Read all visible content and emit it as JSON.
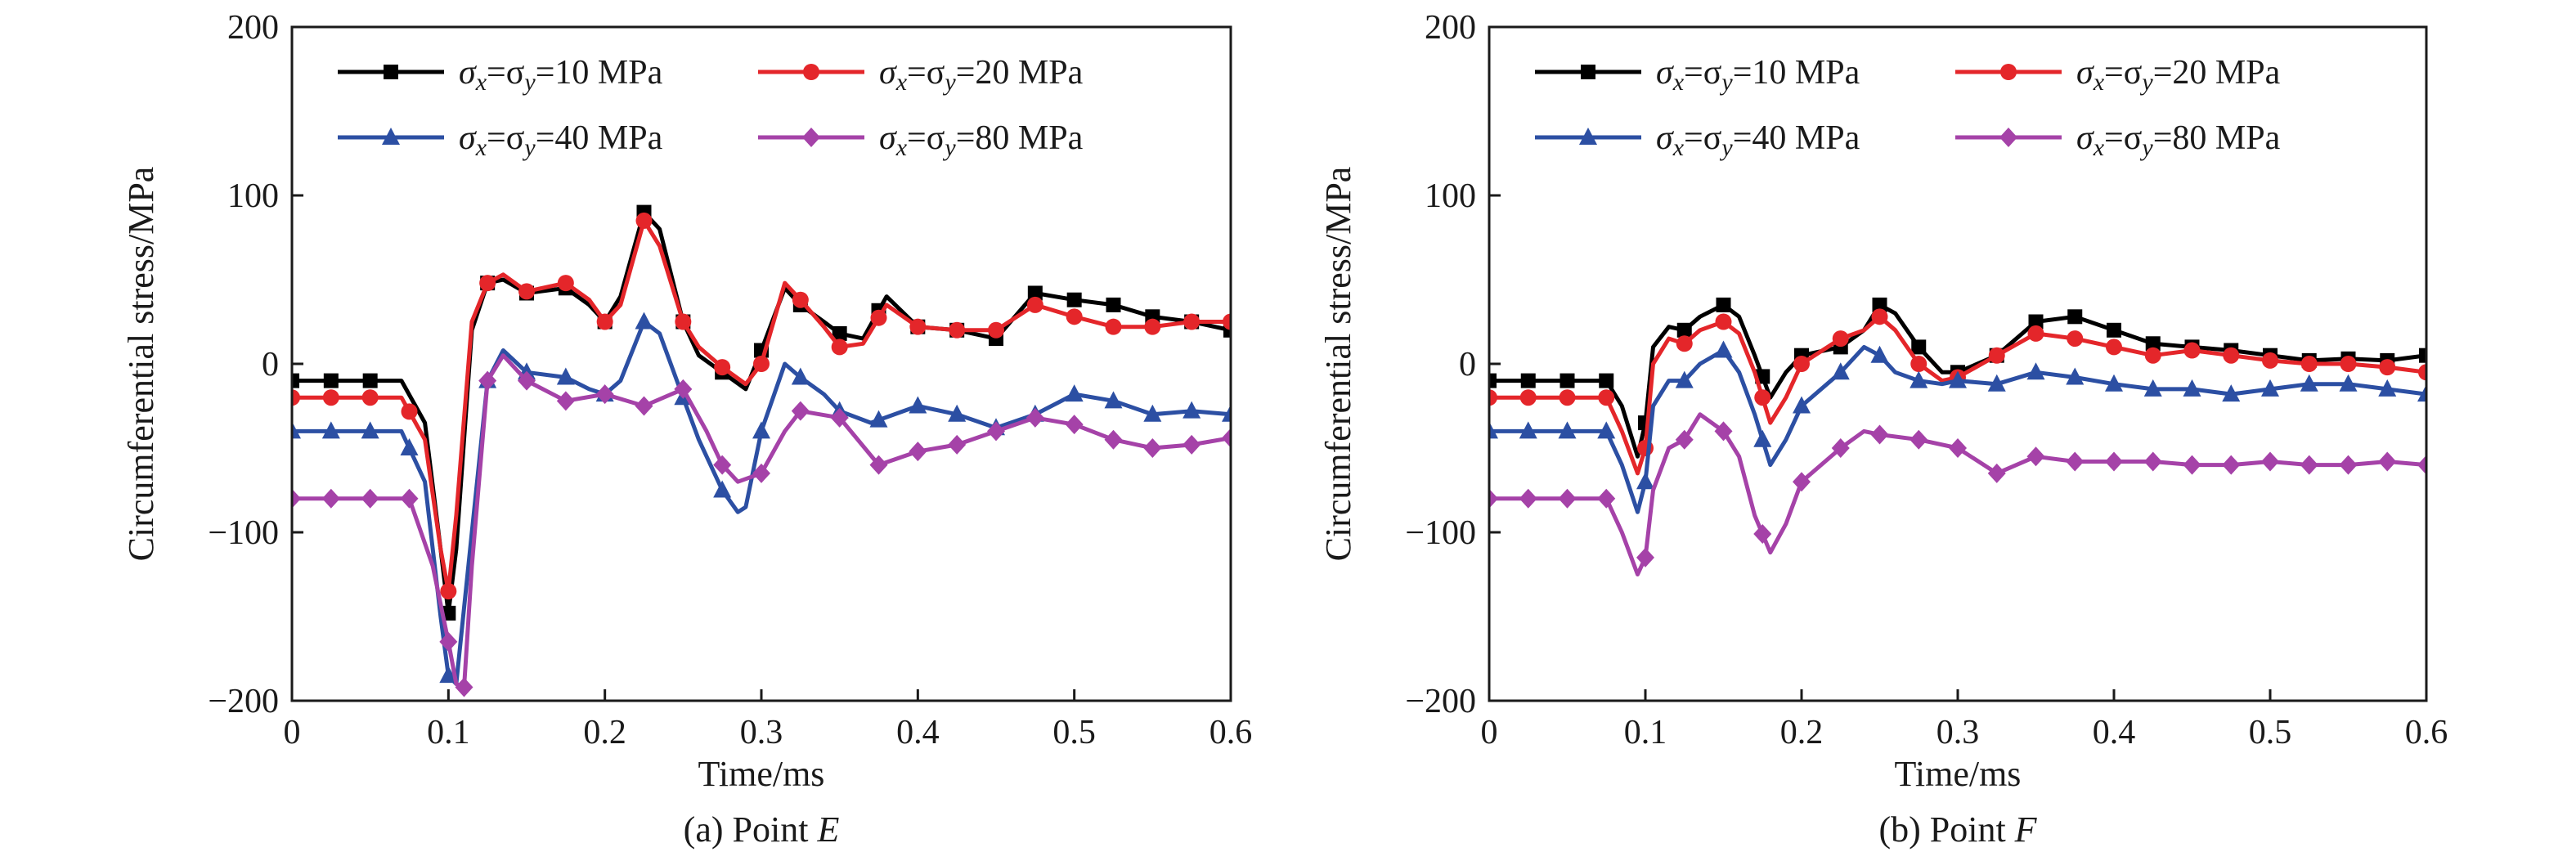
{
  "figure": {
    "subplots": [
      {
        "caption_prefix": "(a) Point ",
        "caption_point": "E"
      },
      {
        "caption_prefix": "(b) Point ",
        "caption_point": "F"
      }
    ]
  },
  "chart_data": [
    {
      "type": "line",
      "title": "",
      "xlabel": "Time/ms",
      "ylabel": "Circumferential stress/MPa",
      "xlim": [
        0,
        0.6
      ],
      "ylim": [
        -200,
        200
      ],
      "xticks": [
        0,
        0.1,
        0.2,
        0.3,
        0.4,
        0.5,
        0.6
      ],
      "xtick_labels": [
        "0",
        "0.1",
        "0.2",
        "0.3",
        "0.4",
        "0.5",
        "0.6"
      ],
      "yticks": [
        -200,
        -100,
        0,
        100,
        200
      ],
      "ytick_labels": [
        "−200",
        "−100",
        "0",
        "100",
        "200"
      ],
      "legend_position": "top",
      "series": [
        {
          "name": "σx=σy=10 MPa",
          "name_parts": [
            "σ",
            "x",
            "=σ",
            "y",
            "=10 MPa"
          ],
          "color": "#000000",
          "marker": "square",
          "x": [
            0,
            0.025,
            0.05,
            0.07,
            0.085,
            0.095,
            0.1,
            0.105,
            0.115,
            0.125,
            0.135,
            0.15,
            0.175,
            0.19,
            0.2,
            0.21,
            0.225,
            0.235,
            0.25,
            0.26,
            0.275,
            0.29,
            0.3,
            0.315,
            0.325,
            0.34,
            0.35,
            0.365,
            0.38,
            0.4,
            0.425,
            0.45,
            0.475,
            0.5,
            0.525,
            0.55,
            0.575,
            0.6
          ],
          "y": [
            -10,
            -10,
            -10,
            -10,
            -35,
            -110,
            -148,
            -110,
            20,
            48,
            50,
            42,
            45,
            35,
            25,
            40,
            90,
            80,
            25,
            5,
            -5,
            -15,
            8,
            45,
            35,
            25,
            18,
            15,
            40,
            22,
            20,
            15,
            42,
            38,
            35,
            28,
            25,
            20
          ],
          "marker_x": [
            0,
            0.025,
            0.05,
            0.1,
            0.125,
            0.15,
            0.175,
            0.2,
            0.225,
            0.25,
            0.275,
            0.3,
            0.325,
            0.35,
            0.375,
            0.4,
            0.425,
            0.45,
            0.475,
            0.5,
            0.525,
            0.55,
            0.575,
            0.6
          ]
        },
        {
          "name": "σx=σy=20 MPa",
          "name_parts": [
            "σ",
            "x",
            "=σ",
            "y",
            "=20 MPa"
          ],
          "color": "#e4262a",
          "marker": "circle",
          "x": [
            0,
            0.025,
            0.05,
            0.07,
            0.085,
            0.095,
            0.1,
            0.105,
            0.115,
            0.125,
            0.135,
            0.15,
            0.175,
            0.19,
            0.2,
            0.21,
            0.225,
            0.235,
            0.25,
            0.26,
            0.275,
            0.29,
            0.3,
            0.315,
            0.325,
            0.34,
            0.35,
            0.365,
            0.38,
            0.4,
            0.425,
            0.45,
            0.475,
            0.5,
            0.525,
            0.55,
            0.575,
            0.6
          ],
          "y": [
            -20,
            -20,
            -20,
            -20,
            -45,
            -110,
            -135,
            -90,
            25,
            48,
            53,
            43,
            48,
            38,
            25,
            35,
            85,
            70,
            25,
            10,
            -2,
            -12,
            0,
            48,
            38,
            22,
            10,
            12,
            35,
            22,
            20,
            20,
            35,
            28,
            22,
            22,
            25,
            25
          ],
          "marker_x": [
            0,
            0.025,
            0.05,
            0.075,
            0.1,
            0.125,
            0.15,
            0.175,
            0.2,
            0.225,
            0.25,
            0.275,
            0.3,
            0.325,
            0.35,
            0.375,
            0.4,
            0.425,
            0.45,
            0.475,
            0.5,
            0.525,
            0.55,
            0.575,
            0.6
          ]
        },
        {
          "name": "σx=σy=40 MPa",
          "name_parts": [
            "σ",
            "x",
            "=σ",
            "y",
            "=40 MPa"
          ],
          "color": "#2c4fa3",
          "marker": "triangle",
          "x": [
            0,
            0.025,
            0.05,
            0.07,
            0.085,
            0.095,
            0.1,
            0.105,
            0.115,
            0.125,
            0.135,
            0.15,
            0.175,
            0.19,
            0.2,
            0.21,
            0.225,
            0.235,
            0.25,
            0.26,
            0.275,
            0.285,
            0.29,
            0.3,
            0.315,
            0.325,
            0.34,
            0.35,
            0.37,
            0.4,
            0.425,
            0.45,
            0.475,
            0.5,
            0.525,
            0.55,
            0.575,
            0.6
          ],
          "y": [
            -40,
            -40,
            -40,
            -40,
            -70,
            -150,
            -185,
            -190,
            -100,
            -10,
            8,
            -5,
            -8,
            -15,
            -18,
            -10,
            25,
            18,
            -20,
            -45,
            -75,
            -88,
            -85,
            -40,
            0,
            -8,
            -18,
            -28,
            -35,
            -25,
            -30,
            -38,
            -30,
            -18,
            -22,
            -30,
            -28,
            -30
          ],
          "marker_x": [
            0,
            0.025,
            0.05,
            0.075,
            0.1,
            0.125,
            0.15,
            0.175,
            0.2,
            0.225,
            0.25,
            0.275,
            0.3,
            0.325,
            0.35,
            0.375,
            0.4,
            0.425,
            0.45,
            0.475,
            0.5,
            0.525,
            0.55,
            0.575,
            0.6
          ]
        },
        {
          "name": "σx=σy=80 MPa",
          "name_parts": [
            "σ",
            "x",
            "=σ",
            "y",
            "=80 MPa"
          ],
          "color": "#a542a8",
          "marker": "diamond",
          "x": [
            0,
            0.025,
            0.05,
            0.075,
            0.09,
            0.1,
            0.105,
            0.11,
            0.115,
            0.125,
            0.135,
            0.15,
            0.175,
            0.2,
            0.225,
            0.25,
            0.265,
            0.275,
            0.285,
            0.3,
            0.315,
            0.325,
            0.35,
            0.375,
            0.4,
            0.425,
            0.45,
            0.475,
            0.5,
            0.525,
            0.55,
            0.575,
            0.6
          ],
          "y": [
            -80,
            -80,
            -80,
            -80,
            -120,
            -165,
            -190,
            -192,
            -120,
            -10,
            5,
            -10,
            -22,
            -18,
            -25,
            -15,
            -40,
            -60,
            -70,
            -65,
            -40,
            -28,
            -32,
            -60,
            -52,
            -48,
            -40,
            -32,
            -36,
            -45,
            -50,
            -48,
            -44
          ],
          "marker_x": [
            0,
            0.025,
            0.05,
            0.075,
            0.1,
            0.11,
            0.125,
            0.15,
            0.175,
            0.2,
            0.225,
            0.25,
            0.275,
            0.3,
            0.325,
            0.35,
            0.375,
            0.4,
            0.425,
            0.45,
            0.475,
            0.5,
            0.525,
            0.55,
            0.575,
            0.6
          ]
        }
      ]
    },
    {
      "type": "line",
      "title": "",
      "xlabel": "Time/ms",
      "ylabel": "Circumferential stress/MPa",
      "xlim": [
        0,
        0.6
      ],
      "ylim": [
        -200,
        200
      ],
      "xticks": [
        0,
        0.1,
        0.2,
        0.3,
        0.4,
        0.5,
        0.6
      ],
      "xtick_labels": [
        "0",
        "0.1",
        "0.2",
        "0.3",
        "0.4",
        "0.5",
        "0.6"
      ],
      "yticks": [
        -200,
        -100,
        0,
        100,
        200
      ],
      "ytick_labels": [
        "−200",
        "−100",
        "0",
        "100",
        "200"
      ],
      "legend_position": "top",
      "series": [
        {
          "name": "σx=σy=10 MPa",
          "name_parts": [
            "σ",
            "x",
            "=σ",
            "y",
            "=10 MPa"
          ],
          "color": "#000000",
          "marker": "square",
          "x": [
            0,
            0.025,
            0.05,
            0.075,
            0.085,
            0.095,
            0.1,
            0.105,
            0.115,
            0.125,
            0.135,
            0.15,
            0.16,
            0.17,
            0.18,
            0.19,
            0.2,
            0.225,
            0.24,
            0.25,
            0.26,
            0.275,
            0.29,
            0.3,
            0.325,
            0.35,
            0.375,
            0.4,
            0.425,
            0.45,
            0.475,
            0.5,
            0.525,
            0.55,
            0.575,
            0.6
          ],
          "y": [
            -10,
            -10,
            -10,
            -10,
            -25,
            -55,
            -35,
            10,
            22,
            20,
            28,
            35,
            28,
            5,
            -20,
            -5,
            5,
            10,
            20,
            35,
            30,
            10,
            -5,
            -5,
            5,
            25,
            28,
            20,
            12,
            10,
            8,
            5,
            2,
            3,
            2,
            5
          ],
          "marker_x": [
            0,
            0.025,
            0.05,
            0.075,
            0.1,
            0.125,
            0.15,
            0.175,
            0.2,
            0.225,
            0.25,
            0.275,
            0.3,
            0.325,
            0.35,
            0.375,
            0.4,
            0.425,
            0.45,
            0.475,
            0.5,
            0.525,
            0.55,
            0.575,
            0.6
          ]
        },
        {
          "name": "σx=σy=20 MPa",
          "name_parts": [
            "σ",
            "x",
            "=σ",
            "y",
            "=20 MPa"
          ],
          "color": "#e4262a",
          "marker": "circle",
          "x": [
            0,
            0.025,
            0.05,
            0.075,
            0.085,
            0.095,
            0.1,
            0.105,
            0.115,
            0.125,
            0.135,
            0.15,
            0.16,
            0.17,
            0.18,
            0.19,
            0.2,
            0.225,
            0.24,
            0.25,
            0.26,
            0.275,
            0.29,
            0.3,
            0.325,
            0.35,
            0.375,
            0.4,
            0.425,
            0.45,
            0.475,
            0.5,
            0.525,
            0.55,
            0.575,
            0.6
          ],
          "y": [
            -20,
            -20,
            -20,
            -20,
            -40,
            -65,
            -50,
            0,
            15,
            12,
            20,
            25,
            18,
            -5,
            -35,
            -20,
            0,
            15,
            20,
            28,
            20,
            0,
            -10,
            -8,
            5,
            18,
            15,
            10,
            5,
            8,
            5,
            2,
            0,
            0,
            -2,
            -5
          ],
          "marker_x": [
            0,
            0.025,
            0.05,
            0.075,
            0.1,
            0.125,
            0.15,
            0.175,
            0.2,
            0.225,
            0.25,
            0.275,
            0.3,
            0.325,
            0.35,
            0.375,
            0.4,
            0.425,
            0.45,
            0.475,
            0.5,
            0.525,
            0.55,
            0.575,
            0.6
          ]
        },
        {
          "name": "σx=σy=40 MPa",
          "name_parts": [
            "σ",
            "x",
            "=σ",
            "y",
            "=40 MPa"
          ],
          "color": "#2c4fa3",
          "marker": "triangle",
          "x": [
            0,
            0.025,
            0.05,
            0.075,
            0.085,
            0.095,
            0.1,
            0.105,
            0.115,
            0.125,
            0.135,
            0.15,
            0.16,
            0.17,
            0.18,
            0.19,
            0.2,
            0.225,
            0.24,
            0.25,
            0.26,
            0.275,
            0.29,
            0.3,
            0.325,
            0.35,
            0.375,
            0.4,
            0.425,
            0.45,
            0.475,
            0.5,
            0.525,
            0.55,
            0.575,
            0.6
          ],
          "y": [
            -40,
            -40,
            -40,
            -40,
            -60,
            -88,
            -70,
            -25,
            -10,
            -10,
            0,
            8,
            -5,
            -30,
            -60,
            -45,
            -25,
            -5,
            10,
            5,
            -5,
            -10,
            -12,
            -10,
            -12,
            -5,
            -8,
            -12,
            -15,
            -15,
            -18,
            -15,
            -12,
            -12,
            -15,
            -18
          ],
          "marker_x": [
            0,
            0.025,
            0.05,
            0.075,
            0.1,
            0.125,
            0.15,
            0.175,
            0.2,
            0.225,
            0.25,
            0.275,
            0.3,
            0.325,
            0.35,
            0.375,
            0.4,
            0.425,
            0.45,
            0.475,
            0.5,
            0.525,
            0.55,
            0.575,
            0.6
          ]
        },
        {
          "name": "σx=σy=80 MPa",
          "name_parts": [
            "σ",
            "x",
            "=σ",
            "y",
            "=80 MPa"
          ],
          "color": "#a542a8",
          "marker": "diamond",
          "x": [
            0,
            0.025,
            0.05,
            0.075,
            0.085,
            0.095,
            0.1,
            0.105,
            0.115,
            0.125,
            0.135,
            0.15,
            0.16,
            0.17,
            0.18,
            0.19,
            0.2,
            0.225,
            0.24,
            0.25,
            0.275,
            0.3,
            0.325,
            0.35,
            0.375,
            0.4,
            0.425,
            0.45,
            0.475,
            0.5,
            0.525,
            0.55,
            0.575,
            0.6
          ],
          "y": [
            -80,
            -80,
            -80,
            -80,
            -100,
            -125,
            -115,
            -75,
            -50,
            -45,
            -30,
            -40,
            -55,
            -90,
            -112,
            -95,
            -70,
            -50,
            -40,
            -42,
            -45,
            -50,
            -65,
            -55,
            -58,
            -58,
            -58,
            -60,
            -60,
            -58,
            -60,
            -60,
            -58,
            -60
          ],
          "marker_x": [
            0,
            0.025,
            0.05,
            0.075,
            0.1,
            0.125,
            0.15,
            0.175,
            0.2,
            0.225,
            0.25,
            0.275,
            0.3,
            0.325,
            0.35,
            0.375,
            0.4,
            0.425,
            0.45,
            0.475,
            0.5,
            0.525,
            0.55,
            0.575,
            0.6
          ]
        }
      ]
    }
  ]
}
